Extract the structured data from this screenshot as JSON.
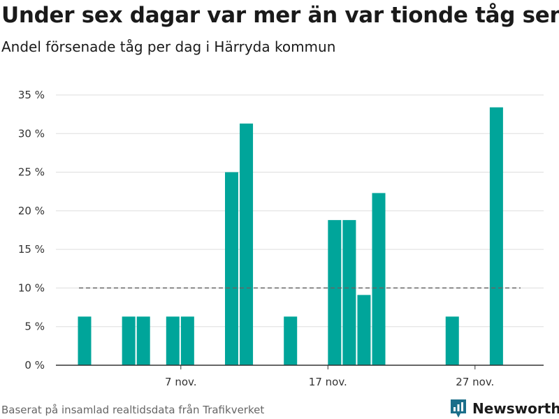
{
  "title": "Under sex dagar var mer än var tionde tåg sent",
  "subtitle": "Andel försenade tåg per dag i Härryda kommun",
  "source": "Baserat på insamlad realtidsdata från Trafikverket",
  "brand": {
    "name": "Newsworthy",
    "color": "#1b6f8a",
    "icon": "bar-chart-pin-icon"
  },
  "chart_data": {
    "type": "bar",
    "title": "Under sex dagar var mer än var tionde tåg sent",
    "subtitle": "Andel försenade tåg per dag i Härryda kommun",
    "xlabel": "",
    "ylabel": "",
    "x_start_day": 1,
    "x_end_day": 31,
    "bar_color": "#00a59a",
    "x": [
      2,
      3,
      4,
      5,
      6,
      7,
      8,
      9,
      10,
      11,
      12,
      13,
      14,
      15,
      16,
      17,
      18,
      19,
      20,
      21,
      22,
      23,
      24,
      25,
      26,
      27,
      28,
      29,
      30
    ],
    "values": [
      6.3,
      0,
      0,
      6.3,
      6.3,
      0,
      6.3,
      6.3,
      0,
      0,
      25,
      31.3,
      0,
      0,
      6.3,
      0,
      0,
      18.8,
      18.8,
      9.1,
      22.3,
      0,
      0,
      0,
      0,
      6.3,
      0,
      0,
      33.4
    ],
    "yticks": [
      0,
      5,
      10,
      15,
      20,
      25,
      30,
      35
    ],
    "ytick_labels": [
      "0 %",
      "5 %",
      "10 %",
      "15 %",
      "20 %",
      "25 %",
      "30 %",
      "35 %"
    ],
    "xticks": [
      8,
      18,
      28
    ],
    "xtick_labels": [
      "7 nov.",
      "17 nov.",
      "27 nov."
    ],
    "ylim": [
      0,
      35
    ],
    "reference_line": {
      "value": 10,
      "style": "dashed",
      "color": "#666666"
    },
    "grid": true
  }
}
